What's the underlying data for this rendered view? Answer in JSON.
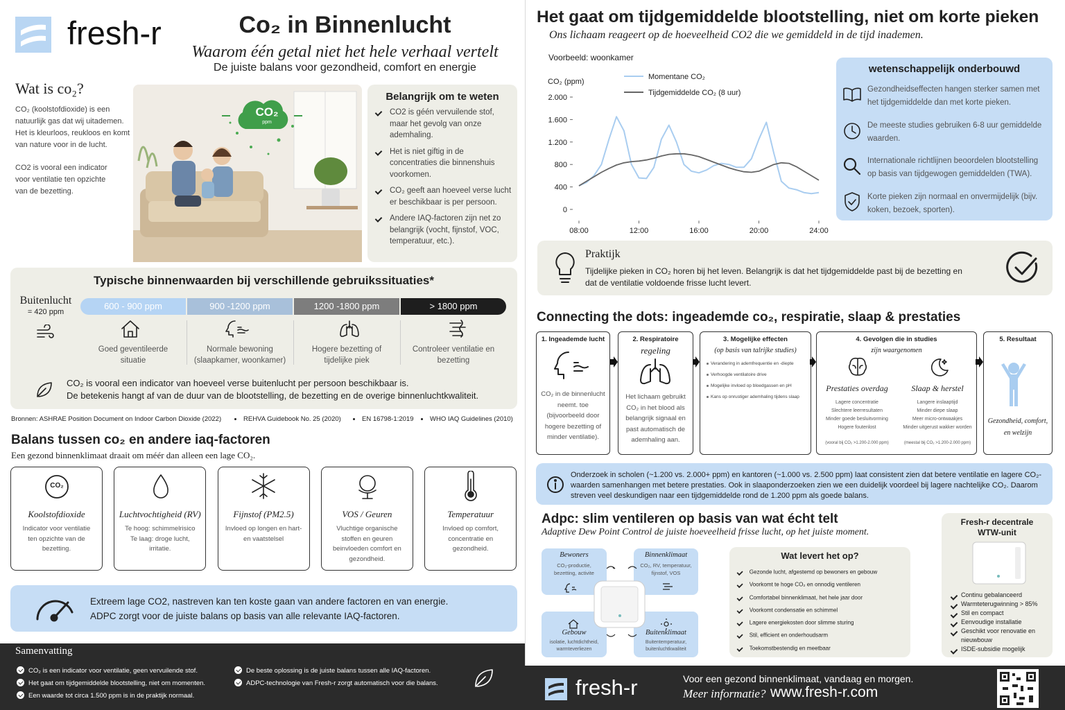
{
  "header": {
    "brand": "fresh-r",
    "title": "Co₂ in Binnenlucht",
    "subtitle": "Waarom één getal niet het hele verhaal vertelt",
    "tagline": "De juiste balans voor gezondheid, comfort en energie"
  },
  "what_is": {
    "title": "Wat is co₂?",
    "paragraphs": [
      "CO₂ (koolstofdioxide) is een natuurlijk gas dat wij uitademen. Het is kleurloos, reukloos en komt van nature voor in de lucht.",
      "CO2 is vooral een indicator voor ventilatie ten opzichte van de bezetting."
    ]
  },
  "illustration": {
    "badge": "CO₂",
    "badge_unit": "ppm"
  },
  "important": {
    "title": "Belangrijk om te weten",
    "items": [
      "CO2 is géén vervuilende stof, maar het gevolg van onze ademhaling.",
      "Het is niet giftig in de concentraties die binnenshuis voorkomen.",
      "CO₂ geeft aan hoeveel verse lucht er beschikbaar is per persoon.",
      "Andere IAQ-factoren zijn net zo belangrijk (vocht, fijnstof, VOC, temperatuur, etc.)."
    ]
  },
  "typical": {
    "title": "Typische binnenwaarden bij verschillende gebruikssituaties*",
    "outdoor_label": "Buitenlucht",
    "outdoor_value": "= 420 ppm",
    "ranges": [
      {
        "label": "600 - 900 ppm",
        "description": "Goed geventileerde situatie"
      },
      {
        "label": "900 -1200 ppm",
        "description": "Normale bewoning (slaapkamer, woonkamer)"
      },
      {
        "label": "1200 -1800 ppm",
        "description": "Hogere bezetting of tijdelijke piek"
      },
      {
        "label": "> 1800 ppm",
        "description": "Controleer ventilatie en bezetting"
      }
    ],
    "note_lines": [
      "CO₂ is vooral een indicator van hoeveel verse buitenlucht per persoon beschikbaar is.",
      "De betekenis hangt af van de duur van de blootstelling, de bezetting en de overige binnenluchtkwaliteit."
    ]
  },
  "sources": [
    "Bronnen: ASHRAE Position Document on Indoor Carbon Dioxide (2022)",
    "REHVA Guidebook No. 25 (2020)",
    "EN 16798-1:2019",
    "WHO IAQ Guidelines (2010)"
  ],
  "balance": {
    "title": "Balans tussen co₂ en andere iaq-factoren",
    "subtitle": "Een gezond binnenklimaat draait om méér dan alleen een lage CO₂.",
    "factors": [
      {
        "icon": "CO₂",
        "name": "Koolstofdioxide",
        "text": "Indicator voor ventilatie ten opzichte van de bezetting."
      },
      {
        "name": "Luchtvochtigheid (RV)",
        "text": "Te hoog: schimmelrisico Te laag: droge lucht, irritatie."
      },
      {
        "name": "Fijnstof (PM2.5)",
        "text": "Invloed op longen en hart- en vaatstelsel"
      },
      {
        "name": "VOS / Geuren",
        "text": "Vluchtige organische stoffen en geuren beinvloeden comfort en gezondheid."
      },
      {
        "name": "Temperatuur",
        "text": "Invloed op comfort, concentratie en gezondheid."
      }
    ],
    "note_lines": [
      "Extreem lage CO2, nastreven kan ten koste gaan van andere factoren en van energie.",
      "ADPC zorgt voor de juiste balans op basis van alle relevante IAQ-factoren."
    ]
  },
  "summary": {
    "title": "Samenvatting",
    "items": [
      "CO₂ is een indicator voor ventilatie, geen vervuilende stof.",
      "Het gaat om tijdgemiddelde blootstelling, niet om momenten.",
      "Een waarde tot circa 1.500 ppm is in de praktijk normaal.",
      "De beste oplossing is de juiste balans tussen alle IAQ-factoren.",
      "ADPC-technologie van Fresh-r zorgt automatisch voor die balans."
    ]
  },
  "exposure": {
    "title": "Het gaat om tijdgemiddelde blootstelling, niet om korte pieken",
    "subtitle": "Ons lichaam reageert op de hoeveelheid CO2 die we gemiddeld in de tijd inademen.",
    "example": "Voorbeeld: woonkamer"
  },
  "chart_data": {
    "type": "line",
    "y_label": "CO₂ (ppm)",
    "x": [
      8,
      8.5,
      9,
      9.5,
      10,
      10.5,
      11,
      11.5,
      12,
      12.5,
      13,
      13.5,
      14,
      14.5,
      15,
      15.5,
      16,
      16.5,
      17,
      17.5,
      18,
      18.5,
      19,
      19.5,
      20,
      20.5,
      21,
      21.5,
      22,
      22.5,
      23,
      23.5,
      24
    ],
    "xlim": [
      8,
      24
    ],
    "xticks": [
      {
        "value": 8,
        "label": "08:00"
      },
      {
        "value": 12,
        "label": "12:00"
      },
      {
        "value": 16,
        "label": "16:00"
      },
      {
        "value": 20,
        "label": "20:00"
      },
      {
        "value": 24,
        "label": "24:00"
      }
    ],
    "ylim": [
      -200,
      2300
    ],
    "yticks": [
      0,
      400,
      800,
      {
        "value": 1200,
        "label": "1.200"
      },
      {
        "value": 1600,
        "label": "1.600"
      },
      {
        "value": 2000,
        "label": "2.000"
      }
    ],
    "series": [
      {
        "name": "Momentane CO₂",
        "color": "#a9cdf0",
        "values": [
          420,
          480,
          600,
          800,
          1250,
          1650,
          1400,
          800,
          560,
          550,
          750,
          1250,
          1500,
          1200,
          800,
          680,
          650,
          700,
          780,
          820,
          800,
          750,
          750,
          900,
          1250,
          1550,
          1000,
          500,
          380,
          350,
          300,
          280,
          300
        ]
      },
      {
        "name": "Tijdgemiddelde CO₂ (8 uur)",
        "color": "#666666",
        "values": [
          420,
          500,
          580,
          660,
          730,
          790,
          830,
          850,
          860,
          880,
          910,
          950,
          980,
          990,
          990,
          970,
          940,
          890,
          840,
          790,
          740,
          700,
          670,
          660,
          680,
          740,
          800,
          830,
          820,
          760,
          680,
          600,
          520
        ]
      }
    ]
  },
  "science": {
    "title": "wetenschappelijk onderbouwd",
    "items": [
      "Gezondheidseffecten hangen sterker samen met het tijdgemiddelde dan met korte pieken.",
      "De meeste studies gebruiken 6-8 uur gemiddelde waarden.",
      "Internationale richtlijnen beoordelen blootstelling op basis van tijdgewogen gemiddelden (TWA).",
      "Korte pieken zijn normaal en onvermijdelijk (bijv. koken, bezoek, sporten)."
    ]
  },
  "practice": {
    "title": "Praktijk",
    "text": "Tijdelijke pieken in CO₂ horen bij het leven. Belangrijk is dat het tijdgemiddelde past bij de bezetting en dat de ventilatie voldoende frisse lucht levert."
  },
  "dots": {
    "title": "Connecting the dots: ingeademde co₂, respiratie, slaap & prestaties",
    "steps": [
      {
        "title": "1. Ingeademde lucht",
        "text": "CO₂ in de binnenlucht neemt. toe (bijvoorbeeld door hogere bezetting of minder ventilatie)."
      },
      {
        "title": "2. Respiratoire",
        "subtitle": "regeling",
        "text": "Het lichaam gebruikt CO₂ in het blood als belangrijk signaal en past automatisch de ademhaling aan."
      },
      {
        "title": "3. Mogelijke effecten",
        "subtitle": "(op basis van talrijke studies)",
        "items": [
          "Verandering in ademfrequentie en -diepte",
          "Verhoogde ventilatoire drive",
          "Mogelijke invloed op bloedgassen en pH",
          "Kans op onrustiger ademhaling tijdens slaap"
        ]
      },
      {
        "title": "4. Gevolgen die in studies",
        "subtitle": "zijn waargenomen",
        "groups": [
          {
            "name": "Prestaties overdag",
            "items": [
              "Lagere concentratie",
              "Slechtere leerresultaten",
              "Minder goede besluitvorming",
              "Hogere foutenlost"
            ],
            "note": "(vooral bij CO₂ >1.200-2.000 ppm)"
          },
          {
            "name": "Slaap & herstel",
            "items": [
              "Langere inslaaptijd",
              "Minder diepe slaap",
              "Meer micro-ontwaakjes",
              "Minder uitgerust wakker worden"
            ],
            "note": "(meestal bij CO₂ >1.200-2.000 ppm)"
          }
        ]
      },
      {
        "title": "5. Resultaat",
        "text": "Gezondheid, comfort, en welzijn"
      }
    ],
    "info": "Onderzoek in scholen (~1.200 vs. 2.000+ ppm) en kantoren (~1.000 vs. 2.500 ppm) laat consistent zien dat betere ventilatie en lagere CO₂-waarden samenhangen met betere prestaties. Ook in slaaponderzoeken zien we een duidelijk voordeel bij lagere nachtelijke CO₂. Daarom streven veel deskundigen naar een tijdgemiddelde rond de 1.200 ppm als goede balans."
  },
  "adpc": {
    "title": "Adpc: slim ventileren op basis van wat écht telt",
    "subtitle": "Adaptive Dew Point Control de juiste hoeveelheid frisse lucht, op het juiste moment.",
    "quadrants": [
      {
        "name": "Bewoners",
        "text": "CO₂-productie, bezetting, activite"
      },
      {
        "name": "Binnenklimaat",
        "text": "CO₂, RV, temperatuur, fijnstof, VOS"
      },
      {
        "name": "Gebouw",
        "text": "isolatie, luchtdichtheid, warmteverliezen"
      },
      {
        "name": "Buitenklimaat",
        "text": "Buitentemperatuur, buitenluchtkwaliteit"
      }
    ],
    "benefits_title": "Wat levert het op?",
    "benefits": [
      "Gezonde lucht, afgestemd op bewoners en gebouw",
      "Voorkomt te hoge CO₂ en onnodig ventileren",
      "Comfortabel binnenklimaat, het hele jaar door",
      "Voorkomt condensatie en schimmel",
      "Lagere energiekosten door slimme sturing",
      "Stil, efficient en onderhoudsarm",
      "Toekomstbestendig en meetbaar"
    ],
    "unit_title": "Fresh-r decentrale WTW-unit",
    "unit_features": [
      "Continu gebalanceerd",
      "Warmteterugwinning > 85%",
      "Stil en compact",
      "Eenvoudige installatie",
      "Geschikt voor renovatie en nieuwbouw",
      "ISDE-subsidie mogelijk"
    ]
  },
  "footer": {
    "brand": "fresh-r",
    "line1": "Voor een gezond binnenklimaat, vandaag en morgen.",
    "more": "Meer informatie?",
    "url": "www.fresh-r.com"
  }
}
